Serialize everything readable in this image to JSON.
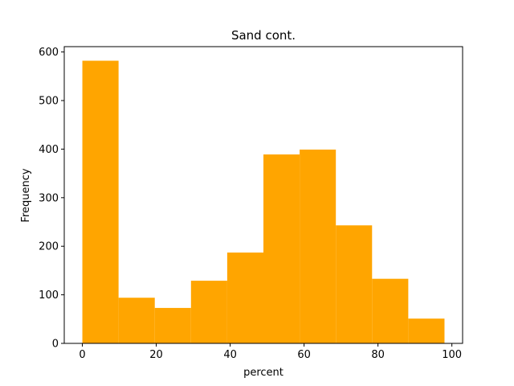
{
  "chart_data": {
    "type": "bar",
    "title": "Sand cont.",
    "xlabel": "percent",
    "ylabel": "Frequency",
    "bar_color": "#FFA500",
    "bins": [
      {
        "x0": 0.0,
        "x1": 9.8,
        "value": 582
      },
      {
        "x0": 9.8,
        "x1": 19.6,
        "value": 94
      },
      {
        "x0": 19.6,
        "x1": 29.4,
        "value": 73
      },
      {
        "x0": 29.4,
        "x1": 39.2,
        "value": 129
      },
      {
        "x0": 39.2,
        "x1": 49.0,
        "value": 187
      },
      {
        "x0": 49.0,
        "x1": 58.8,
        "value": 389
      },
      {
        "x0": 58.8,
        "x1": 68.6,
        "value": 399
      },
      {
        "x0": 68.6,
        "x1": 78.4,
        "value": 243
      },
      {
        "x0": 78.4,
        "x1": 88.2,
        "value": 133
      },
      {
        "x0": 88.2,
        "x1": 98.0,
        "value": 51
      }
    ],
    "xlim": [
      -4.9,
      102.9
    ],
    "ylim": [
      0,
      611
    ],
    "xticks": [
      0,
      20,
      40,
      60,
      80,
      100
    ],
    "xtick_labels": [
      "0",
      "20",
      "40",
      "60",
      "80",
      "100"
    ],
    "yticks": [
      0,
      100,
      200,
      300,
      400,
      500,
      600
    ],
    "ytick_labels": [
      "0",
      "100",
      "200",
      "300",
      "400",
      "500",
      "600"
    ],
    "grid": false,
    "legend": "none"
  }
}
